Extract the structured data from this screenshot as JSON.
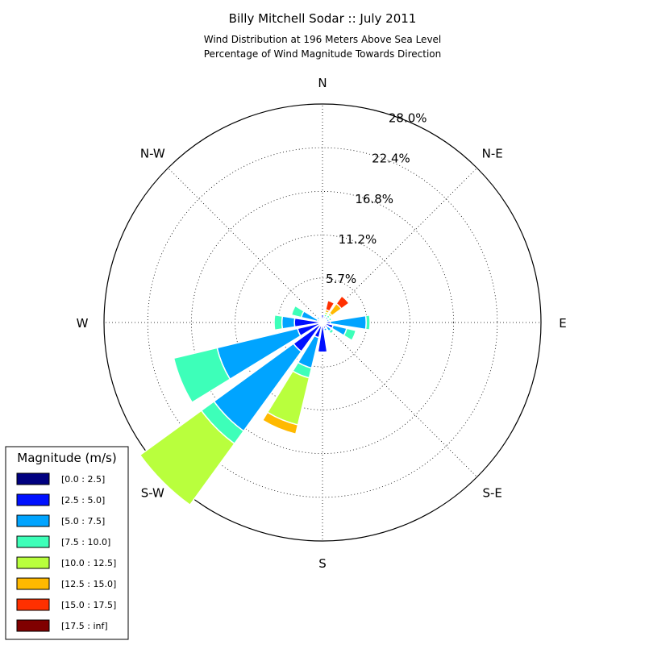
{
  "chart_data": {
    "type": "windrose",
    "title": "Billy Mitchell Sodar :: July 2011",
    "subtitle_line1": "Wind Distribution at 196 Meters Above Sea Level",
    "subtitle_line2": "Percentage of Wind Magnitude Towards Direction",
    "r_max": 28.0,
    "radial_ticks": [
      5.7,
      11.2,
      16.8,
      22.4,
      28.0
    ],
    "radial_tick_labels": [
      "5.7%",
      "11.2%",
      "16.8%",
      "22.4%",
      "28.0%"
    ],
    "direction_labels": [
      {
        "label": "N",
        "angle": 0
      },
      {
        "label": "N-E",
        "angle": 45
      },
      {
        "label": "E",
        "angle": 90
      },
      {
        "label": "S-E",
        "angle": 135
      },
      {
        "label": "S",
        "angle": 180
      },
      {
        "label": "S-W",
        "angle": 225
      },
      {
        "label": "W",
        "angle": 270
      },
      {
        "label": "N-W",
        "angle": 315
      }
    ],
    "legend": {
      "title": "Magnitude (m/s)",
      "placement": "bottom-left",
      "bins": [
        {
          "label": "[0.0 : 2.5]",
          "color": "#000080"
        },
        {
          "label": "[2.5 : 5.0]",
          "color": "#0010ff"
        },
        {
          "label": "[5.0 : 7.5]",
          "color": "#00a4ff"
        },
        {
          "label": "[7.5 : 10.0]",
          "color": "#3dffb9"
        },
        {
          "label": "[10.0 : 12.5]",
          "color": "#b9ff3d"
        },
        {
          "label": "[12.5 : 15.0]",
          "color": "#ffb900"
        },
        {
          "label": "[15.0 : 17.5]",
          "color": "#ff3000"
        },
        {
          "label": "[17.5 : inf]",
          "color": "#800000"
        }
      ]
    },
    "sector_width_deg": 22.5,
    "sectors": [
      {
        "direction": "N",
        "angle": 0,
        "values": [
          0.3,
          0.7,
          0,
          0,
          0,
          0,
          0,
          0
        ]
      },
      {
        "direction": "NNE",
        "angle": 22.5,
        "values": [
          0.3,
          0.3,
          0.2,
          0.3,
          0.3,
          0.3,
          1.2,
          0
        ]
      },
      {
        "direction": "NE",
        "angle": 45,
        "values": [
          0.3,
          0.3,
          0.3,
          0.3,
          0.3,
          1.5,
          1.2,
          0
        ]
      },
      {
        "direction": "ENE",
        "angle": 67.5,
        "values": [
          0.3,
          0.3,
          0.3,
          0.3,
          0,
          0,
          0,
          0
        ]
      },
      {
        "direction": "E",
        "angle": 90,
        "values": [
          0.4,
          0.6,
          4.6,
          0.5,
          0,
          0,
          0,
          0
        ]
      },
      {
        "direction": "ESE",
        "angle": 112.5,
        "values": [
          0.4,
          1.0,
          1.8,
          1.2,
          0,
          0,
          0,
          0
        ]
      },
      {
        "direction": "SE",
        "angle": 135,
        "values": [
          0.3,
          0.5,
          0.6,
          0.4,
          0,
          0,
          0,
          0
        ]
      },
      {
        "direction": "SSE",
        "angle": 157.5,
        "values": [
          0.3,
          0.5,
          0.3,
          0,
          0,
          0,
          0,
          0
        ]
      },
      {
        "direction": "S",
        "angle": 180,
        "values": [
          0.4,
          3.4,
          0,
          0,
          0,
          0,
          0,
          0
        ]
      },
      {
        "direction": "SSW",
        "angle": 202.5,
        "values": [
          0.4,
          1.6,
          4.0,
          1.3,
          6.2,
          1.2,
          0,
          0
        ]
      },
      {
        "direction": "SW",
        "angle": 225,
        "values": [
          0.4,
          4.2,
          12.6,
          2.0,
          9.7,
          0,
          0,
          0
        ]
      },
      {
        "direction": "WSW",
        "angle": 247.5,
        "values": [
          0.4,
          2.9,
          10.6,
          5.7,
          0,
          0,
          0,
          0
        ]
      },
      {
        "direction": "W",
        "angle": 270,
        "values": [
          0.4,
          3.2,
          1.6,
          1.0,
          0,
          0,
          0,
          0
        ]
      },
      {
        "direction": "WNW",
        "angle": 292.5,
        "values": [
          0.4,
          0.3,
          2.1,
          1.3,
          0,
          0,
          0,
          0
        ]
      },
      {
        "direction": "NW",
        "angle": 315,
        "values": [
          0.3,
          0.3,
          0.3,
          0,
          0,
          0,
          0,
          0
        ]
      },
      {
        "direction": "NNW",
        "angle": 337.5,
        "values": [
          0.3,
          0.3,
          0,
          0,
          0,
          0,
          0,
          0
        ]
      }
    ]
  }
}
